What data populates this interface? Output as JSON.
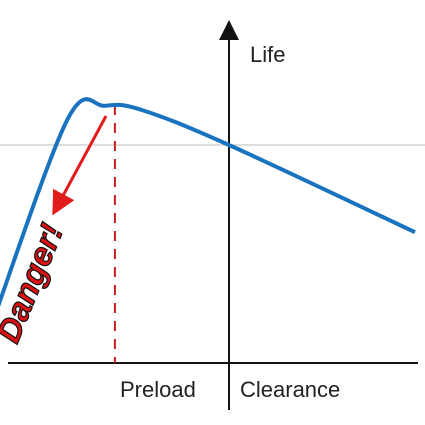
{
  "chart_data": {
    "type": "line",
    "title": "",
    "ylabel": "Life",
    "xlabel_left": "Preload",
    "xlabel_right": "Clearance",
    "annotation": "Danger!",
    "series": [
      {
        "values": [
          {
            "x": -0.95,
            "y": 0.2
          },
          {
            "x": -0.65,
            "y": 1.12
          },
          {
            "x": -0.5,
            "y": 1.18
          },
          {
            "x": -0.35,
            "y": 1.16
          },
          {
            "x": 0.0,
            "y": 1.0
          },
          {
            "x": 0.75,
            "y": 0.6
          }
        ]
      }
    ],
    "reference_line_y": 1.0,
    "peak_x": -0.46,
    "colors": {
      "curve": "#1a73bf",
      "reference_line": "#bbbbbb",
      "axes": "#111111",
      "peak_marker": "#c81e1e",
      "arrow": "#e21b1b",
      "danger_fill": "#dd1111",
      "danger_outline": "#111111"
    }
  }
}
